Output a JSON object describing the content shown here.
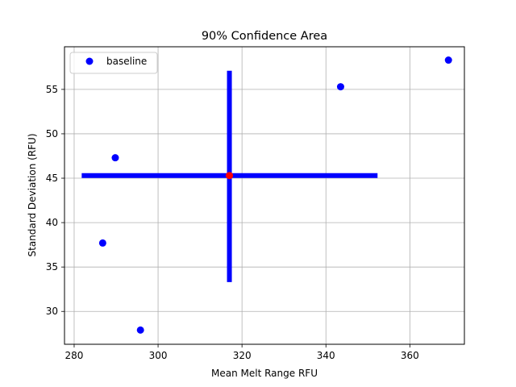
{
  "chart_data": {
    "type": "scatter",
    "title": "90% Confidence Area",
    "xlabel": "Mean Melt Range RFU",
    "ylabel": "Standard Deviation (RFU)",
    "xlim": [
      277.7,
      373.0
    ],
    "ylim": [
      26.3,
      59.8
    ],
    "xticks": [
      280,
      300,
      320,
      340,
      360
    ],
    "yticks": [
      30,
      35,
      40,
      45,
      50,
      55
    ],
    "grid": true,
    "legend_position": "upper-left",
    "series": [
      {
        "name": "baseline",
        "color": "#0000ff",
        "x": [
          286.8,
          289.8,
          295.8,
          343.5,
          369.2
        ],
        "y": [
          37.7,
          47.3,
          27.9,
          55.3,
          58.3
        ]
      }
    ],
    "center": {
      "x": 317.0,
      "y": 45.3,
      "color": "#ff0000"
    },
    "confidence_interval": {
      "color": "#0000ff",
      "x_range": [
        281.8,
        352.3
      ],
      "y_range": [
        33.3,
        57.1
      ]
    }
  }
}
